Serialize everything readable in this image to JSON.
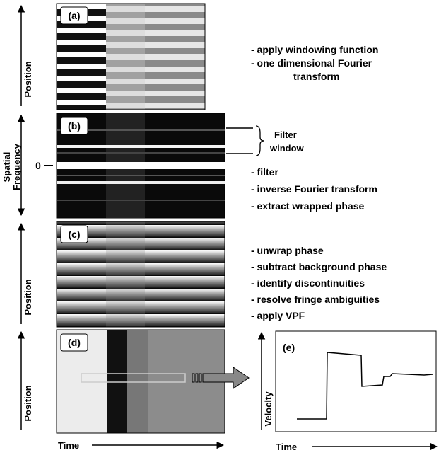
{
  "panel_a": {
    "label": "(a)",
    "axis": "Position"
  },
  "panel_b": {
    "label": "(b)",
    "axis": [
      "Spatial",
      "Frequency"
    ],
    "zero": "0",
    "filter_label": [
      "Filter",
      "window"
    ]
  },
  "panel_c": {
    "label": "(c)",
    "axis": "Position"
  },
  "panel_d": {
    "label": "(d)",
    "axis": "Position",
    "x_axis": "Time"
  },
  "panel_e": {
    "label": "(e)",
    "axis": "Velocity",
    "x_axis": "Time"
  },
  "steps_1": [
    "- apply windowing function",
    "- one dimensional Fourier",
    "transform"
  ],
  "steps_2": [
    "- filter",
    "- inverse Fourier transform",
    "- extract wrapped phase"
  ],
  "steps_3": [
    "- unwrap phase",
    "- subtract background phase",
    "- identify discontinuities",
    "- resolve fringe ambiguities",
    "- apply VPF"
  ]
}
